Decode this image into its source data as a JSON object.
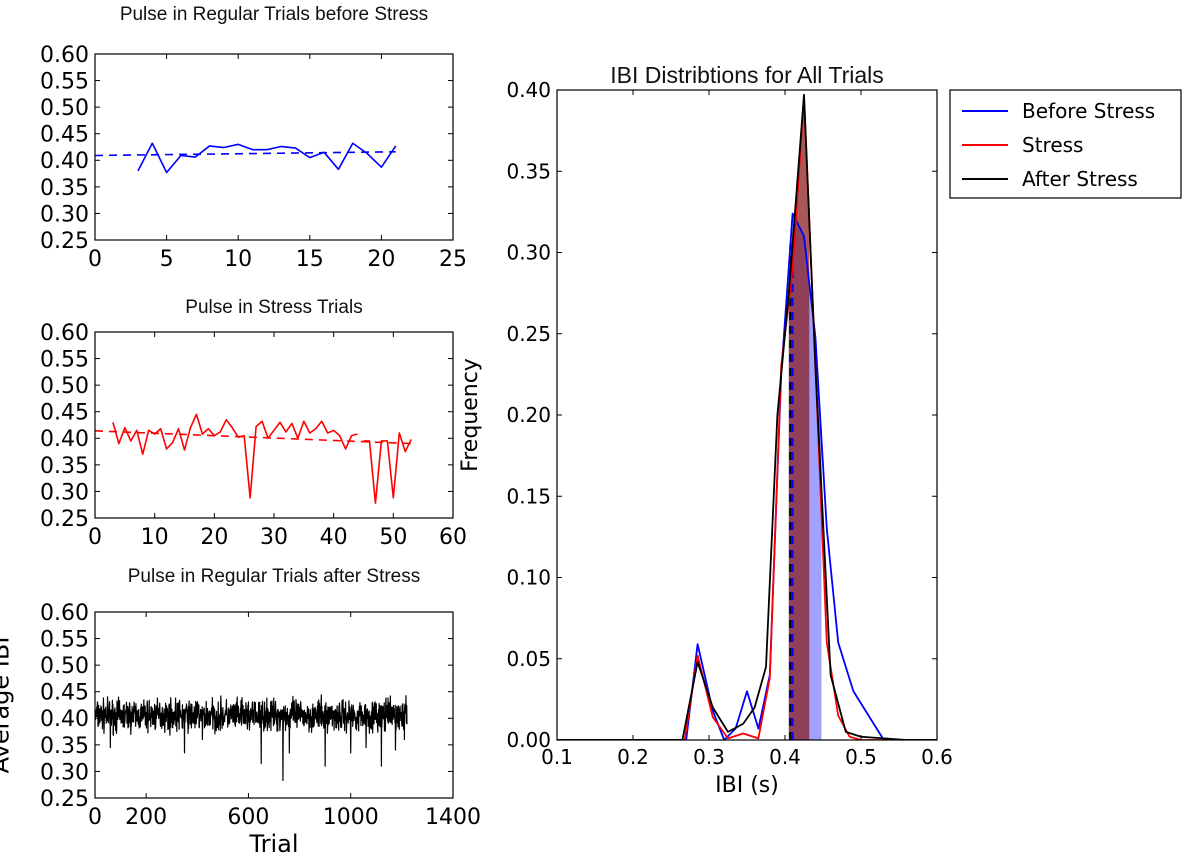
{
  "colors": {
    "before": "#0000ff",
    "stress": "#ff0000",
    "after": "#000000",
    "fill_before": "#8a8aff",
    "fill_after": "#8b2020"
  },
  "chart_data": [
    {
      "id": "p1",
      "type": "line",
      "title": "Pulse in Regular Trials before Stress",
      "xlabel": "",
      "ylabel": "",
      "xlim": [
        0,
        25
      ],
      "ylim": [
        0.25,
        0.6
      ],
      "xticks": [
        0,
        5,
        10,
        15,
        20,
        25
      ],
      "yticks": [
        0.25,
        0.3,
        0.35,
        0.4,
        0.45,
        0.5,
        0.55,
        0.6
      ],
      "series": [
        {
          "color": "#0000ff",
          "style": "solid",
          "x": [
            3,
            4,
            5,
            6,
            7,
            8,
            9,
            10,
            11,
            12,
            13,
            14,
            15,
            16,
            17,
            18,
            19,
            20,
            21
          ],
          "y": [
            0.38,
            0.432,
            0.377,
            0.409,
            0.406,
            0.427,
            0.424,
            0.43,
            0.42,
            0.42,
            0.426,
            0.423,
            0.405,
            0.415,
            0.383,
            0.432,
            0.413,
            0.387,
            0.427
          ]
        },
        {
          "color": "#0000ff",
          "style": "dashed",
          "x": [
            0,
            21
          ],
          "y": [
            0.409,
            0.416
          ]
        }
      ]
    },
    {
      "id": "p2",
      "type": "line",
      "title": "Pulse in Stress Trials",
      "xlabel": "",
      "ylabel": "",
      "xlim": [
        0,
        60
      ],
      "ylim": [
        0.25,
        0.6
      ],
      "xticks": [
        0,
        10,
        20,
        30,
        40,
        50,
        60
      ],
      "yticks": [
        0.25,
        0.3,
        0.35,
        0.4,
        0.45,
        0.5,
        0.55,
        0.6
      ],
      "series": [
        {
          "color": "#ff0000",
          "style": "solid",
          "x": [
            3,
            4,
            5,
            6,
            7,
            8,
            9,
            10,
            11,
            12,
            13,
            14,
            15,
            16,
            17,
            18,
            19,
            20,
            21,
            22,
            23,
            24,
            25,
            26,
            27,
            28,
            29,
            30,
            31,
            32,
            33,
            34,
            35,
            36,
            37,
            38,
            39,
            40,
            41,
            42,
            43,
            44
          ],
          "y": [
            0.43,
            0.39,
            0.42,
            0.395,
            0.415,
            0.37,
            0.415,
            0.408,
            0.418,
            0.38,
            0.392,
            0.418,
            0.378,
            0.42,
            0.445,
            0.408,
            0.418,
            0.405,
            0.412,
            0.435,
            0.42,
            0.402,
            0.405,
            0.288,
            0.422,
            0.432,
            0.4,
            0.415,
            0.43,
            0.412,
            0.428,
            0.4,
            0.432,
            0.41,
            0.418,
            0.432,
            0.41,
            0.415,
            0.405,
            0.38,
            0.405,
            0.408
          ]
        },
        {
          "color": "#ff0000",
          "style": "solid",
          "x": [
            45,
            46,
            47,
            48,
            49,
            50,
            51,
            52,
            53
          ],
          "y": [
            0.395,
            0.395,
            0.278,
            0.395,
            0.395,
            0.288,
            0.41,
            0.375,
            0.398
          ]
        },
        {
          "color": "#ff0000",
          "style": "dashed",
          "x": [
            0,
            53
          ],
          "y": [
            0.414,
            0.39
          ]
        }
      ]
    },
    {
      "id": "p3",
      "type": "line",
      "title": "Pulse in Regular Trials after Stress",
      "xlabel": "Trial",
      "ylabel": "Average IBI",
      "xlim": [
        0,
        1400
      ],
      "ylim": [
        0.25,
        0.6
      ],
      "xticks": [
        0,
        200,
        600,
        1000,
        1400
      ],
      "yticks": [
        0.25,
        0.3,
        0.35,
        0.4,
        0.45,
        0.5,
        0.55,
        0.6
      ],
      "noise": {
        "n": 1220,
        "mean": 0.405,
        "amp": 0.022,
        "seed": 7,
        "dips": [
          [
            60,
            0.345
          ],
          [
            350,
            0.335
          ],
          [
            420,
            0.36
          ],
          [
            650,
            0.315
          ],
          [
            735,
            0.283
          ],
          [
            760,
            0.335
          ],
          [
            900,
            0.31
          ],
          [
            1000,
            0.335
          ],
          [
            1060,
            0.345
          ],
          [
            1120,
            0.31
          ],
          [
            1175,
            0.34
          ],
          [
            1210,
            0.36
          ]
        ]
      },
      "series": [
        {
          "color": "#000000",
          "style": "solid"
        }
      ]
    },
    {
      "id": "p4",
      "type": "area",
      "title": "IBI Distribtions for All Trials",
      "xlabel": "IBI (s)",
      "ylabel": "Frequency",
      "xlim": [
        0.1,
        0.6
      ],
      "ylim": [
        0.0,
        0.4
      ],
      "xticks": [
        0.1,
        0.2,
        0.3,
        0.4,
        0.5,
        0.6
      ],
      "yticks": [
        0.0,
        0.05,
        0.1,
        0.15,
        0.2,
        0.25,
        0.3,
        0.35,
        0.4
      ],
      "legend": {
        "position": "outside-top-right",
        "entries": [
          "Before Stress",
          "Stress",
          "After Stress"
        ]
      },
      "series": [
        {
          "name": "Before Stress",
          "color": "#0000ff",
          "x": [
            0.1,
            0.21,
            0.27,
            0.285,
            0.305,
            0.32,
            0.335,
            0.35,
            0.365,
            0.38,
            0.395,
            0.41,
            0.425,
            0.44,
            0.455,
            0.47,
            0.49,
            0.51,
            0.53,
            0.6
          ],
          "y": [
            0,
            0,
            0,
            0.059,
            0.018,
            0,
            0.007,
            0.03,
            0.007,
            0.04,
            0.225,
            0.324,
            0.31,
            0.248,
            0.13,
            0.06,
            0.03,
            0.015,
            0.0,
            0.0
          ]
        },
        {
          "name": "Stress",
          "color": "#ff0000",
          "x": [
            0.1,
            0.26,
            0.268,
            0.285,
            0.305,
            0.325,
            0.345,
            0.365,
            0.38,
            0.395,
            0.41,
            0.425,
            0.44,
            0.455,
            0.47,
            0.485,
            0.5,
            0.6
          ],
          "y": [
            0,
            0,
            0,
            0.052,
            0.014,
            0.001,
            0.004,
            0.001,
            0.038,
            0.23,
            0.29,
            0.397,
            0.23,
            0.06,
            0.015,
            0.002,
            0,
            0
          ]
        },
        {
          "name": "After Stress",
          "color": "#000000",
          "x": [
            0.1,
            0.24,
            0.265,
            0.285,
            0.305,
            0.325,
            0.345,
            0.36,
            0.375,
            0.39,
            0.405,
            0.425,
            0.44,
            0.46,
            0.48,
            0.5,
            0.53,
            0.56,
            0.6
          ],
          "y": [
            0,
            0,
            0,
            0.048,
            0.02,
            0.005,
            0.01,
            0.02,
            0.045,
            0.2,
            0.275,
            0.397,
            0.23,
            0.04,
            0.005,
            0.002,
            0.001,
            0,
            0
          ]
        }
      ],
      "mean_lines": [
        {
          "x": 0.407,
          "color": "#000000"
        },
        {
          "x": 0.41,
          "color": "#0000ff"
        }
      ],
      "shade": {
        "x_range": [
          0.405,
          0.448
        ]
      }
    }
  ]
}
